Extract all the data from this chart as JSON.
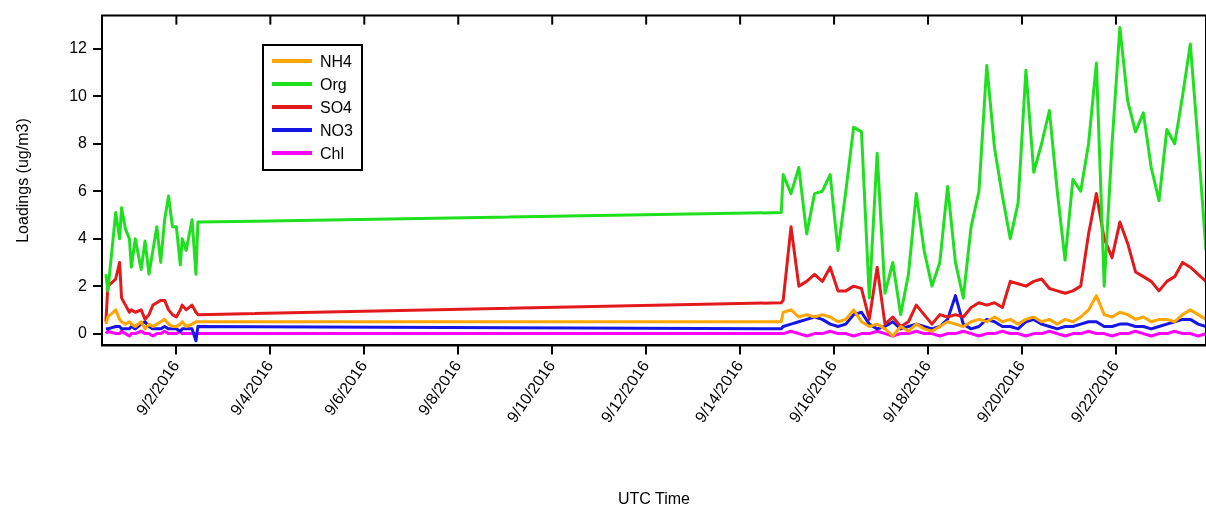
{
  "chart_data": {
    "type": "line",
    "xlabel": "UTC Time",
    "ylabel": "Loadings (ug/m3)",
    "xlim": [
      "2016-08-31T10:00",
      "2016-09-23T22:00"
    ],
    "xticks": [
      {
        "value": "2016-09-02",
        "label": "9/2/2016"
      },
      {
        "value": "2016-09-04",
        "label": "9/4/2016"
      },
      {
        "value": "2016-09-06",
        "label": "9/6/2016"
      },
      {
        "value": "2016-09-08",
        "label": "9/8/2016"
      },
      {
        "value": "2016-09-10",
        "label": "9/10/2016"
      },
      {
        "value": "2016-09-12",
        "label": "9/12/2016"
      },
      {
        "value": "2016-09-14",
        "label": "9/14/2016"
      },
      {
        "value": "2016-09-16",
        "label": "9/16/2016"
      },
      {
        "value": "2016-09-18",
        "label": "9/18/2016"
      },
      {
        "value": "2016-09-20",
        "label": "9/20/2016"
      },
      {
        "value": "2016-09-22",
        "label": "9/22/2016"
      }
    ],
    "ylim": [
      -0.5,
      13.4
    ],
    "yticks": [
      0,
      2,
      4,
      6,
      8,
      10,
      12
    ],
    "legend": "top left",
    "x": [
      "2016-08-31T12:00",
      "2016-08-31T13:00",
      "2016-08-31T17:00",
      "2016-08-31T19:00",
      "2016-08-31T20:00",
      "2016-08-31T22:00",
      "2016-09-01T00:00",
      "2016-09-01T01:00",
      "2016-09-01T03:00",
      "2016-09-01T06:00",
      "2016-09-01T08:00",
      "2016-09-01T10:00",
      "2016-09-01T12:00",
      "2016-09-01T14:00",
      "2016-09-01T16:00",
      "2016-09-01T18:00",
      "2016-09-01T20:00",
      "2016-09-01T22:00",
      "2016-09-02T00:00",
      "2016-09-02T02:00",
      "2016-09-02T03:00",
      "2016-09-02T05:00",
      "2016-09-02T08:00",
      "2016-09-02T10:00",
      "2016-09-02T11:00",
      "2016-09-14T21:00",
      "2016-09-14T22:00",
      "2016-09-15T02:00",
      "2016-09-15T06:00",
      "2016-09-15T10:00",
      "2016-09-15T14:00",
      "2016-09-15T18:00",
      "2016-09-15T22:00",
      "2016-09-16T02:00",
      "2016-09-16T06:00",
      "2016-09-16T10:00",
      "2016-09-16T14:00",
      "2016-09-16T18:00",
      "2016-09-16T22:00",
      "2016-09-17T02:00",
      "2016-09-17T06:00",
      "2016-09-17T10:00",
      "2016-09-17T14:00",
      "2016-09-17T18:00",
      "2016-09-17T22:00",
      "2016-09-18T02:00",
      "2016-09-18T06:00",
      "2016-09-18T10:00",
      "2016-09-18T14:00",
      "2016-09-18T18:00",
      "2016-09-18T22:00",
      "2016-09-19T02:00",
      "2016-09-19T06:00",
      "2016-09-19T10:00",
      "2016-09-19T14:00",
      "2016-09-19T18:00",
      "2016-09-19T22:00",
      "2016-09-20T02:00",
      "2016-09-20T06:00",
      "2016-09-20T10:00",
      "2016-09-20T14:00",
      "2016-09-20T18:00",
      "2016-09-20T22:00",
      "2016-09-21T02:00",
      "2016-09-21T06:00",
      "2016-09-21T10:00",
      "2016-09-21T14:00",
      "2016-09-21T18:00",
      "2016-09-21T22:00",
      "2016-09-22T02:00",
      "2016-09-22T06:00",
      "2016-09-22T10:00",
      "2016-09-22T14:00",
      "2016-09-22T18:00",
      "2016-09-22T22:00",
      "2016-09-23T02:00",
      "2016-09-23T06:00",
      "2016-09-23T10:00",
      "2016-09-23T14:00",
      "2016-09-23T18:00",
      "2016-09-23T22:00"
    ],
    "series": [
      {
        "name": "NH4",
        "color": "#ffa500",
        "values": [
          0.4,
          0.7,
          1.0,
          0.6,
          0.5,
          0.4,
          0.5,
          0.4,
          0.3,
          0.5,
          0.2,
          0.4,
          0.3,
          0.4,
          0.5,
          0.6,
          0.4,
          0.3,
          0.3,
          0.4,
          0.5,
          0.3,
          0.4,
          0.5,
          0.5,
          0.5,
          0.9,
          1.0,
          0.7,
          0.8,
          0.7,
          0.8,
          0.7,
          0.5,
          0.6,
          1.0,
          0.5,
          0.3,
          0.4,
          0.2,
          -0.1,
          0.3,
          0.1,
          0.4,
          0.2,
          0.1,
          0.3,
          0.5,
          0.4,
          0.3,
          0.5,
          0.6,
          0.5,
          0.7,
          0.5,
          0.6,
          0.4,
          0.6,
          0.7,
          0.5,
          0.6,
          0.4,
          0.6,
          0.5,
          0.7,
          1.0,
          1.6,
          0.8,
          0.7,
          0.9,
          0.8,
          0.6,
          0.7,
          0.5,
          0.6,
          0.6,
          0.5,
          0.8,
          1.0,
          0.8,
          0.6
        ]
      },
      {
        "name": "Org",
        "color": "#1fe01f",
        "values": [
          2.5,
          1.8,
          5.1,
          4.0,
          5.3,
          4.4,
          4.0,
          2.8,
          4.0,
          2.7,
          3.9,
          2.5,
          3.5,
          4.5,
          3.0,
          4.8,
          5.8,
          4.5,
          4.5,
          2.9,
          4.0,
          3.5,
          4.8,
          2.5,
          4.7,
          5.1,
          6.7,
          5.9,
          7.0,
          4.2,
          5.9,
          6.0,
          6.7,
          3.5,
          6.0,
          8.7,
          8.5,
          1.5,
          7.6,
          1.7,
          3.0,
          0.8,
          2.5,
          5.9,
          3.5,
          2.0,
          3.0,
          6.2,
          3.0,
          1.5,
          4.5,
          6.0,
          11.3,
          7.8,
          5.8,
          4.0,
          5.5,
          11.1,
          6.8,
          8.0,
          9.4,
          6.0,
          3.1,
          6.5,
          6.0,
          8.0,
          11.4,
          2.0,
          8.0,
          12.9,
          9.8,
          8.5,
          9.3,
          7.0,
          5.6,
          8.6,
          8.0,
          10.0,
          12.2,
          8.0,
          3.5
        ]
      },
      {
        "name": "SO4",
        "color": "#e31a1c",
        "values": [
          0.5,
          2.0,
          2.3,
          3.0,
          1.5,
          1.2,
          0.9,
          1.0,
          0.9,
          1.0,
          0.6,
          0.8,
          1.2,
          1.3,
          1.4,
          1.4,
          1.0,
          0.8,
          0.7,
          1.0,
          1.2,
          1.0,
          1.2,
          0.9,
          0.8,
          1.3,
          1.4,
          4.5,
          2.0,
          2.2,
          2.5,
          2.2,
          2.8,
          1.8,
          1.8,
          2.0,
          1.9,
          0.6,
          2.8,
          0.4,
          0.7,
          0.3,
          0.5,
          1.2,
          0.8,
          0.4,
          0.8,
          0.7,
          0.8,
          0.7,
          1.1,
          1.3,
          1.2,
          1.3,
          1.1,
          2.2,
          2.1,
          2.0,
          2.2,
          2.3,
          1.9,
          1.8,
          1.7,
          1.8,
          2.0,
          4.2,
          5.9,
          4.0,
          3.2,
          4.7,
          3.8,
          2.6,
          2.4,
          2.2,
          1.8,
          2.2,
          2.4,
          3.0,
          2.8,
          2.5,
          2.2
        ]
      },
      {
        "name": "NO3",
        "color": "#1515e6",
        "values": [
          0.2,
          0.2,
          0.3,
          0.3,
          0.2,
          0.2,
          0.2,
          0.3,
          0.2,
          0.4,
          0.5,
          0.3,
          0.2,
          0.2,
          0.2,
          0.3,
          0.2,
          0.2,
          0.2,
          0.1,
          0.2,
          0.2,
          0.2,
          -0.3,
          0.3,
          0.2,
          0.3,
          0.4,
          0.5,
          0.6,
          0.7,
          0.6,
          0.4,
          0.3,
          0.4,
          0.8,
          0.9,
          0.4,
          0.2,
          0.3,
          0.5,
          0.2,
          0.3,
          0.4,
          0.3,
          0.2,
          0.3,
          0.6,
          1.6,
          0.4,
          0.2,
          0.3,
          0.6,
          0.5,
          0.3,
          0.3,
          0.2,
          0.5,
          0.6,
          0.4,
          0.3,
          0.2,
          0.3,
          0.3,
          0.4,
          0.5,
          0.5,
          0.3,
          0.3,
          0.4,
          0.4,
          0.3,
          0.3,
          0.2,
          0.3,
          0.4,
          0.5,
          0.6,
          0.6,
          0.4,
          0.3
        ]
      },
      {
        "name": "Chl",
        "color": "#ff00ff",
        "values": [
          0.0,
          0.1,
          0.0,
          0.0,
          0.1,
          0.0,
          -0.1,
          0.0,
          0.0,
          0.1,
          0.0,
          0.0,
          -0.1,
          0.0,
          0.0,
          0.1,
          0.0,
          0.0,
          0.0,
          0.1,
          0.0,
          0.0,
          0.0,
          0.0,
          0.0,
          0.0,
          0.0,
          0.1,
          0.0,
          -0.1,
          0.0,
          0.0,
          0.1,
          0.0,
          0.0,
          -0.1,
          0.0,
          0.0,
          0.1,
          0.0,
          -0.1,
          0.0,
          0.0,
          0.1,
          0.0,
          0.0,
          -0.1,
          0.0,
          0.0,
          0.1,
          0.0,
          -0.1,
          0.0,
          0.0,
          0.1,
          0.0,
          0.0,
          -0.1,
          0.0,
          0.0,
          0.1,
          0.0,
          -0.1,
          0.0,
          0.0,
          0.1,
          0.0,
          0.0,
          -0.1,
          0.0,
          0.0,
          0.1,
          0.0,
          -0.1,
          0.0,
          0.0,
          0.1,
          0.0,
          0.0,
          -0.1,
          0.0
        ]
      }
    ]
  }
}
